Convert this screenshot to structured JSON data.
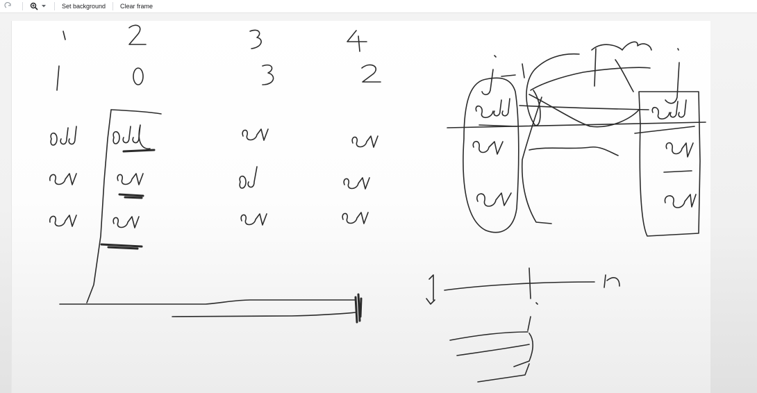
{
  "toolbar": {
    "redo_icon": "redo-icon",
    "zoom_icon": "zoom-in-icon",
    "zoom_caret_icon": "chevron-down-icon",
    "set_background_label": "Set background",
    "clear_frame_label": "Clear frame"
  },
  "canvas": {
    "content": "handwritten-drawing"
  }
}
